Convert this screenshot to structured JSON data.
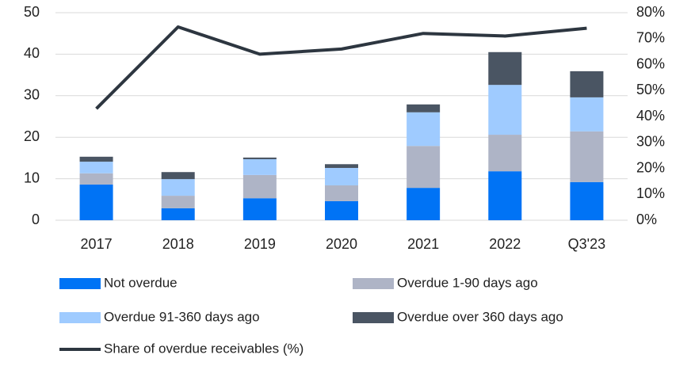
{
  "chart_data": {
    "type": "bar",
    "categories": [
      "2017",
      "2018",
      "2019",
      "2020",
      "2021",
      "2022",
      "Q3'23"
    ],
    "stacked": true,
    "series": [
      {
        "name": "Not overdue",
        "color": "#0073f5",
        "values": [
          8.6,
          2.9,
          5.3,
          4.6,
          7.8,
          11.8,
          9.2
        ]
      },
      {
        "name": "Overdue 1-90 days ago",
        "color": "#aeb4c6",
        "values": [
          2.7,
          3.0,
          5.6,
          3.8,
          10.1,
          8.8,
          12.2
        ]
      },
      {
        "name": "Overdue 91-360 days ago",
        "color": "#9fcbff",
        "values": [
          2.8,
          4.0,
          3.8,
          4.2,
          8.1,
          12.0,
          8.2
        ]
      },
      {
        "name": "Overdue over 360 days ago",
        "color": "#4a5563",
        "values": [
          1.2,
          1.7,
          0.4,
          0.9,
          1.9,
          7.9,
          6.3
        ]
      },
      {
        "name": "Share of overdue receivables (%)",
        "color": "#2d3640",
        "type": "line",
        "axis": "y2",
        "values": [
          43,
          74.5,
          64,
          66,
          72,
          71,
          74
        ]
      }
    ],
    "ylim": [
      0,
      50
    ],
    "yticks": [
      0,
      10,
      20,
      30,
      40,
      50
    ],
    "y2lim": [
      0,
      80
    ],
    "y2ticks": [
      {
        "value": 0,
        "label": "0%"
      },
      {
        "value": 10,
        "label": "10%"
      },
      {
        "value": 20,
        "label": "20%"
      },
      {
        "value": 30,
        "label": "30%"
      },
      {
        "value": 40,
        "label": "40%"
      },
      {
        "value": 50,
        "label": "50%"
      },
      {
        "value": 60,
        "label": "60%"
      },
      {
        "value": 70,
        "label": "70%"
      },
      {
        "value": 80,
        "label": "80%"
      }
    ],
    "grid": true
  }
}
